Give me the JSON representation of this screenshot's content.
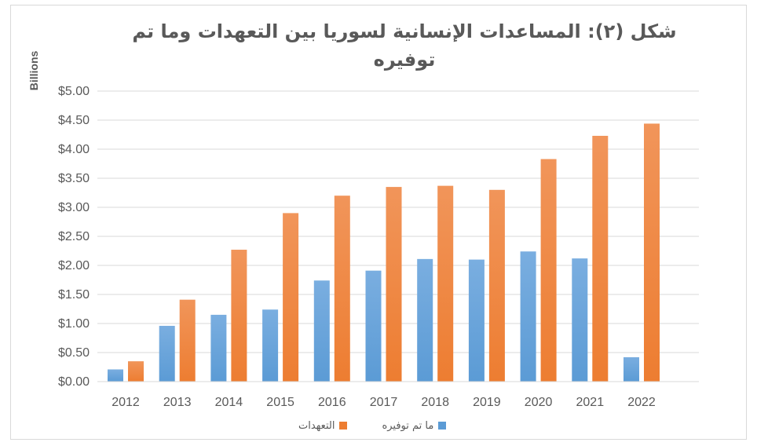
{
  "chart_data": {
    "type": "bar",
    "title": "شكل (٢): المساعدات الإنسانية لسوريا بين التعهدات وما تم توفيره",
    "ylabel": "Billions",
    "xlabel": "",
    "ylim": [
      0,
      5
    ],
    "yticks": [
      "$0.00",
      "$0.50",
      "$1.00",
      "$1.50",
      "$2.00",
      "$2.50",
      "$3.00",
      "$3.50",
      "$4.00",
      "$4.50",
      "$5.00"
    ],
    "ytick_values": [
      0,
      0.5,
      1,
      1.5,
      2,
      2.5,
      3,
      3.5,
      4,
      4.5,
      5
    ],
    "categories": [
      "2012",
      "2013",
      "2014",
      "2015",
      "2016",
      "2017",
      "2018",
      "2019",
      "2020",
      "2021",
      "2022"
    ],
    "series": [
      {
        "name": "ما تم توفيره",
        "color": "#5b9bd5",
        "values": [
          0.21,
          0.96,
          1.15,
          1.24,
          1.74,
          1.91,
          2.11,
          2.1,
          2.24,
          2.12,
          0.42
        ]
      },
      {
        "name": "التعهدات",
        "color": "#ed7d31",
        "values": [
          0.35,
          1.41,
          2.27,
          2.9,
          3.2,
          3.35,
          3.37,
          3.3,
          3.83,
          4.23,
          4.44
        ]
      }
    ],
    "grid": true,
    "legend": "bottom"
  }
}
